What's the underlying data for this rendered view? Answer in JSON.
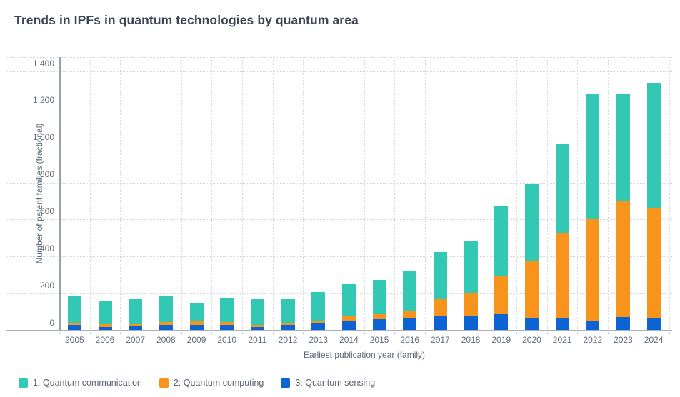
{
  "title": "Trends in IPFs in quantum technologies by quantum area",
  "chart_data": {
    "type": "bar",
    "stacked": true,
    "title": "Trends in IPFs in quantum technologies by quantum area",
    "xlabel": "Earliest publication year (family)",
    "ylabel": "Number of patent families (fractional)",
    "ylim": [
      0,
      1480
    ],
    "grid": "dotted horizontal and vertical",
    "legend_position": "bottom-left",
    "yticks": [
      {
        "value": 0,
        "label": "0"
      },
      {
        "value": 200,
        "label": "200"
      },
      {
        "value": 400,
        "label": "400"
      },
      {
        "value": 600,
        "label": "600"
      },
      {
        "value": 800,
        "label": "800"
      },
      {
        "value": 1000,
        "label": "1 000"
      },
      {
        "value": 1200,
        "label": "1 200"
      },
      {
        "value": 1400,
        "label": "1 400"
      }
    ],
    "categories": [
      "2005",
      "2006",
      "2007",
      "2008",
      "2009",
      "2010",
      "2011",
      "2012",
      "2013",
      "2014",
      "2015",
      "2016",
      "2017",
      "2018",
      "2019",
      "2020",
      "2021",
      "2022",
      "2023",
      "2024"
    ],
    "series": [
      {
        "name": "1: Quantum communication",
        "color": "#33C8B3",
        "values": [
          150,
          125,
          135,
          145,
          100,
          130,
          140,
          130,
          160,
          170,
          185,
          220,
          255,
          285,
          375,
          415,
          480,
          675,
          575,
          675
        ]
      },
      {
        "name": "2: Quantum computing",
        "color": "#F8941C",
        "values": [
          10,
          15,
          10,
          15,
          20,
          15,
          10,
          10,
          10,
          30,
          30,
          40,
          90,
          120,
          205,
          310,
          460,
          545,
          625,
          595
        ]
      },
      {
        "name": "3: Quantum sensing",
        "color": "#0C63D4",
        "values": [
          30,
          20,
          25,
          30,
          30,
          30,
          20,
          30,
          40,
          50,
          60,
          65,
          80,
          80,
          90,
          65,
          70,
          55,
          75,
          70
        ]
      }
    ],
    "stack_order_bottom_to_top": [
      "3: Quantum sensing",
      "2: Quantum computing",
      "1: Quantum communication"
    ],
    "totals": [
      190,
      160,
      170,
      190,
      150,
      175,
      170,
      170,
      210,
      250,
      275,
      325,
      425,
      485,
      670,
      790,
      1010,
      1275,
      1275,
      1340
    ]
  }
}
